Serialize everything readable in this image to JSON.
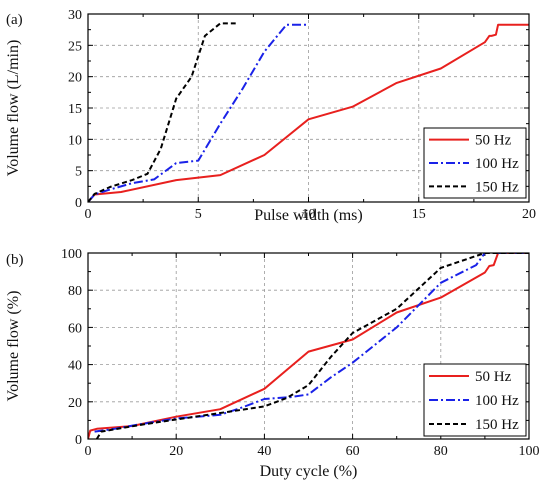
{
  "chart_data": [
    {
      "panel_label": "(a)",
      "type": "line",
      "xlabel": "Pulse width (ms)",
      "ylabel": "Volume flow (L/min)",
      "xlim": [
        0,
        20
      ],
      "ylim": [
        0,
        30
      ],
      "xticks": [
        0,
        5,
        10,
        15,
        20
      ],
      "yticks": [
        0,
        5,
        10,
        15,
        20,
        25,
        30
      ],
      "grid": true,
      "legend_position": "bottom-right",
      "series": [
        {
          "name": "50 Hz",
          "color": "#e8201e",
          "dash": "solid",
          "x": [
            0,
            0.3,
            1.5,
            4,
            6,
            8,
            10,
            12,
            14,
            16,
            18,
            18.2,
            18.3,
            18.5,
            18.6,
            20
          ],
          "y": [
            0,
            1.2,
            1.6,
            3.5,
            4.3,
            7.5,
            13.2,
            15.2,
            19,
            21.3,
            25.5,
            26.5,
            26.5,
            26.7,
            28.3,
            28.3
          ]
        },
        {
          "name": "100 Hz",
          "color": "#1a22e8",
          "dash": "dashdot",
          "x": [
            0,
            0.3,
            1,
            2,
            3,
            4,
            5,
            6,
            7,
            8,
            9,
            10
          ],
          "y": [
            0,
            1.2,
            2,
            3,
            3.6,
            6.2,
            6.6,
            12.5,
            18,
            24,
            28.3,
            28.3
          ]
        },
        {
          "name": "150 Hz",
          "color": "#000000",
          "dash": "dashed",
          "x": [
            0,
            0.3,
            1,
            2,
            2.7,
            3.3,
            4,
            4.7,
            5.3,
            6,
            6.7
          ],
          "y": [
            0,
            1.3,
            2.4,
            3.5,
            4.5,
            8.5,
            16.5,
            20,
            26.5,
            28.5,
            28.5
          ]
        }
      ]
    },
    {
      "panel_label": "(b)",
      "type": "line",
      "xlabel": "Duty cycle (%)",
      "ylabel": "Volume flow (%)",
      "xlim": [
        0,
        100
      ],
      "ylim": [
        0,
        100
      ],
      "xticks": [
        0,
        20,
        40,
        60,
        80,
        100
      ],
      "yticks": [
        0,
        20,
        40,
        60,
        80,
        100
      ],
      "grid": true,
      "legend_position": "bottom-right",
      "series": [
        {
          "name": "50 Hz",
          "color": "#e8201e",
          "dash": "solid",
          "x": [
            0,
            0.5,
            2,
            10,
            20,
            30,
            40,
            50,
            60,
            70,
            80,
            90,
            91,
            92,
            93,
            100
          ],
          "y": [
            0,
            4.5,
            5.5,
            7,
            12,
            16,
            27,
            47,
            53.5,
            68,
            76,
            89.5,
            93,
            93.5,
            100,
            100
          ]
        },
        {
          "name": "100 Hz",
          "color": "#1a22e8",
          "dash": "dashdot",
          "x": [
            1.5,
            6,
            12,
            20,
            30,
            35,
            40,
            46,
            50,
            55,
            60,
            70,
            80,
            88,
            90,
            100
          ],
          "y": [
            4,
            5.5,
            8,
            11,
            13,
            17,
            21.5,
            22.5,
            24,
            33,
            41,
            60,
            84,
            93.5,
            100,
            100
          ]
        },
        {
          "name": "150 Hz",
          "color": "#000000",
          "dash": "dashed",
          "x": [
            2,
            3,
            8,
            13,
            20,
            30,
            40,
            45,
            50,
            55,
            60,
            70,
            80,
            90,
            100
          ],
          "y": [
            0,
            4,
            6,
            8,
            10.5,
            14,
            17.5,
            22,
            29,
            44,
            57,
            70,
            92,
            100,
            100
          ]
        }
      ]
    }
  ]
}
